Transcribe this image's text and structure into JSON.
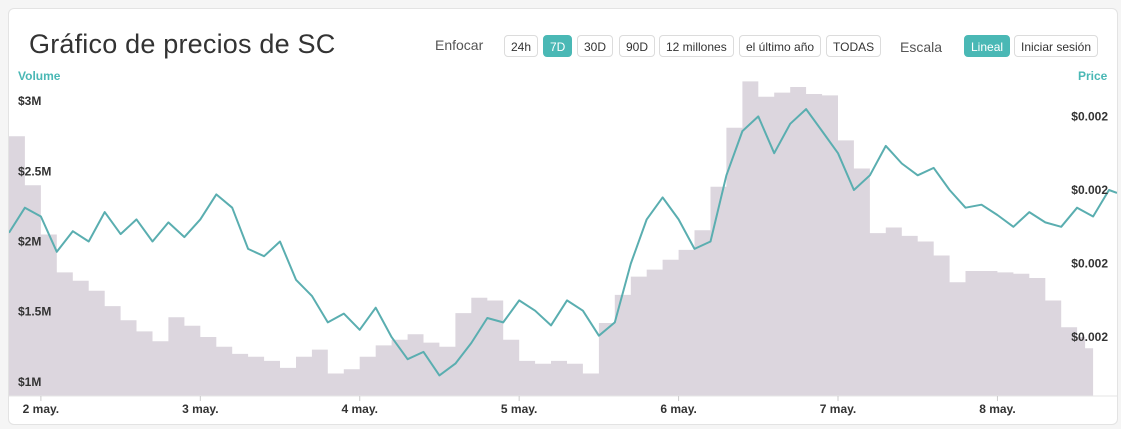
{
  "title": "Gráfico de precios de SC",
  "zoom": {
    "label": "Enfocar",
    "options": [
      "24h",
      "7D",
      "30D",
      "90D",
      "12 millones",
      "el último año",
      "TODAS"
    ],
    "selected": "7D"
  },
  "scale": {
    "label": "Escala",
    "options": [
      "Lineal",
      "Iniciar sesión"
    ],
    "selected": "Lineal"
  },
  "colors": {
    "accent": "#4ab8b5",
    "volume_fill": "#dcd6de",
    "price_line": "#5aaeb0"
  },
  "chart_data": {
    "type": "line",
    "x_ticks": [
      "2 may.",
      "3 may.",
      "4 may.",
      "5 may.",
      "6 may.",
      "7 may.",
      "8 may."
    ],
    "y_left_title": "Volume",
    "y_left_ticks": [
      "$1M",
      "$1.5M",
      "$2M",
      "$2.5M",
      "$3M"
    ],
    "y_left_tick_values": [
      1000000,
      1500000,
      2000000,
      2500000,
      3000000
    ],
    "y_left_range": [
      900000,
      3100000
    ],
    "y_right_title": "Price",
    "y_right_ticks": [
      "$0.002",
      "$0.002",
      "$0.002",
      "$0.002"
    ],
    "y_right_tick_values": [
      0.002,
      0.00205,
      0.0021,
      0.00215
    ],
    "y_right_range": [
      0.00196,
      0.00217
    ],
    "x_range": [
      1.8,
      8.75
    ],
    "grid": false,
    "series": [
      {
        "name": "Price",
        "kind": "line",
        "points": [
          [
            1.8,
            0.002071
          ],
          [
            1.9,
            0.002088
          ],
          [
            2.0,
            0.002082
          ],
          [
            2.1,
            0.002058
          ],
          [
            2.2,
            0.002072
          ],
          [
            2.3,
            0.002065
          ],
          [
            2.4,
            0.002085
          ],
          [
            2.5,
            0.00207
          ],
          [
            2.6,
            0.00208
          ],
          [
            2.7,
            0.002065
          ],
          [
            2.8,
            0.002078
          ],
          [
            2.9,
            0.002068
          ],
          [
            3.0,
            0.00208
          ],
          [
            3.1,
            0.002097
          ],
          [
            3.2,
            0.002088
          ],
          [
            3.3,
            0.00206
          ],
          [
            3.4,
            0.002055
          ],
          [
            3.5,
            0.002065
          ],
          [
            3.6,
            0.002039
          ],
          [
            3.7,
            0.002028
          ],
          [
            3.8,
            0.00201
          ],
          [
            3.9,
            0.002016
          ],
          [
            4.0,
            0.002005
          ],
          [
            4.1,
            0.00202
          ],
          [
            4.2,
            0.002
          ],
          [
            4.3,
            0.001985
          ],
          [
            4.4,
            0.00199
          ],
          [
            4.5,
            0.001974
          ],
          [
            4.6,
            0.001982
          ],
          [
            4.7,
            0.001996
          ],
          [
            4.8,
            0.002013
          ],
          [
            4.9,
            0.00201
          ],
          [
            5.0,
            0.002025
          ],
          [
            5.1,
            0.002018
          ],
          [
            5.2,
            0.002008
          ],
          [
            5.3,
            0.002025
          ],
          [
            5.4,
            0.002018
          ],
          [
            5.5,
            0.002001
          ],
          [
            5.6,
            0.00201
          ],
          [
            5.7,
            0.00205
          ],
          [
            5.8,
            0.00208
          ],
          [
            5.9,
            0.002095
          ],
          [
            6.0,
            0.00208
          ],
          [
            6.1,
            0.00206
          ],
          [
            6.2,
            0.002065
          ],
          [
            6.3,
            0.00211
          ],
          [
            6.4,
            0.00214
          ],
          [
            6.5,
            0.00215
          ],
          [
            6.6,
            0.002125
          ],
          [
            6.7,
            0.002145
          ],
          [
            6.8,
            0.002155
          ],
          [
            6.9,
            0.00214
          ],
          [
            7.0,
            0.002125
          ],
          [
            7.1,
            0.0021
          ],
          [
            7.2,
            0.00211
          ],
          [
            7.3,
            0.00213
          ],
          [
            7.4,
            0.002118
          ],
          [
            7.5,
            0.00211
          ],
          [
            7.6,
            0.002115
          ],
          [
            7.7,
            0.0021
          ],
          [
            7.8,
            0.002088
          ],
          [
            7.9,
            0.00209
          ],
          [
            8.0,
            0.002083
          ],
          [
            8.1,
            0.002075
          ],
          [
            8.2,
            0.002085
          ],
          [
            8.3,
            0.002078
          ],
          [
            8.4,
            0.002075
          ],
          [
            8.5,
            0.002088
          ],
          [
            8.6,
            0.002082
          ],
          [
            8.7,
            0.0021
          ],
          [
            8.75,
            0.002098
          ]
        ]
      },
      {
        "name": "Volume",
        "kind": "area",
        "points": [
          [
            1.8,
            2750000
          ],
          [
            1.9,
            2400000
          ],
          [
            2.0,
            2050000
          ],
          [
            2.1,
            1780000
          ],
          [
            2.2,
            1720000
          ],
          [
            2.3,
            1650000
          ],
          [
            2.4,
            1540000
          ],
          [
            2.5,
            1440000
          ],
          [
            2.6,
            1360000
          ],
          [
            2.7,
            1290000
          ],
          [
            2.8,
            1460000
          ],
          [
            2.9,
            1400000
          ],
          [
            3.0,
            1320000
          ],
          [
            3.1,
            1250000
          ],
          [
            3.2,
            1200000
          ],
          [
            3.3,
            1180000
          ],
          [
            3.4,
            1150000
          ],
          [
            3.5,
            1100000
          ],
          [
            3.6,
            1180000
          ],
          [
            3.7,
            1230000
          ],
          [
            3.8,
            1060000
          ],
          [
            3.9,
            1090000
          ],
          [
            4.0,
            1180000
          ],
          [
            4.1,
            1260000
          ],
          [
            4.2,
            1300000
          ],
          [
            4.3,
            1340000
          ],
          [
            4.4,
            1280000
          ],
          [
            4.5,
            1250000
          ],
          [
            4.6,
            1490000
          ],
          [
            4.7,
            1600000
          ],
          [
            4.8,
            1580000
          ],
          [
            4.9,
            1300000
          ],
          [
            5.0,
            1150000
          ],
          [
            5.1,
            1130000
          ],
          [
            5.2,
            1150000
          ],
          [
            5.3,
            1130000
          ],
          [
            5.4,
            1060000
          ],
          [
            5.5,
            1420000
          ],
          [
            5.6,
            1620000
          ],
          [
            5.7,
            1750000
          ],
          [
            5.8,
            1800000
          ],
          [
            5.9,
            1870000
          ],
          [
            6.0,
            1940000
          ],
          [
            6.1,
            2080000
          ],
          [
            6.2,
            2390000
          ],
          [
            6.3,
            2810000
          ],
          [
            6.4,
            3140000
          ],
          [
            6.5,
            3030000
          ],
          [
            6.6,
            3060000
          ],
          [
            6.7,
            3100000
          ],
          [
            6.8,
            3050000
          ],
          [
            6.9,
            3040000
          ],
          [
            7.0,
            2720000
          ],
          [
            7.1,
            2520000
          ],
          [
            7.2,
            2060000
          ],
          [
            7.3,
            2100000
          ],
          [
            7.4,
            2040000
          ],
          [
            7.5,
            2000000
          ],
          [
            7.6,
            1900000
          ],
          [
            7.7,
            1710000
          ],
          [
            7.8,
            1790000
          ],
          [
            7.9,
            1790000
          ],
          [
            8.0,
            1780000
          ],
          [
            8.1,
            1770000
          ],
          [
            8.2,
            1740000
          ],
          [
            8.3,
            1580000
          ],
          [
            8.4,
            1390000
          ],
          [
            8.5,
            1320000
          ],
          [
            8.55,
            1240000
          ]
        ]
      }
    ]
  }
}
